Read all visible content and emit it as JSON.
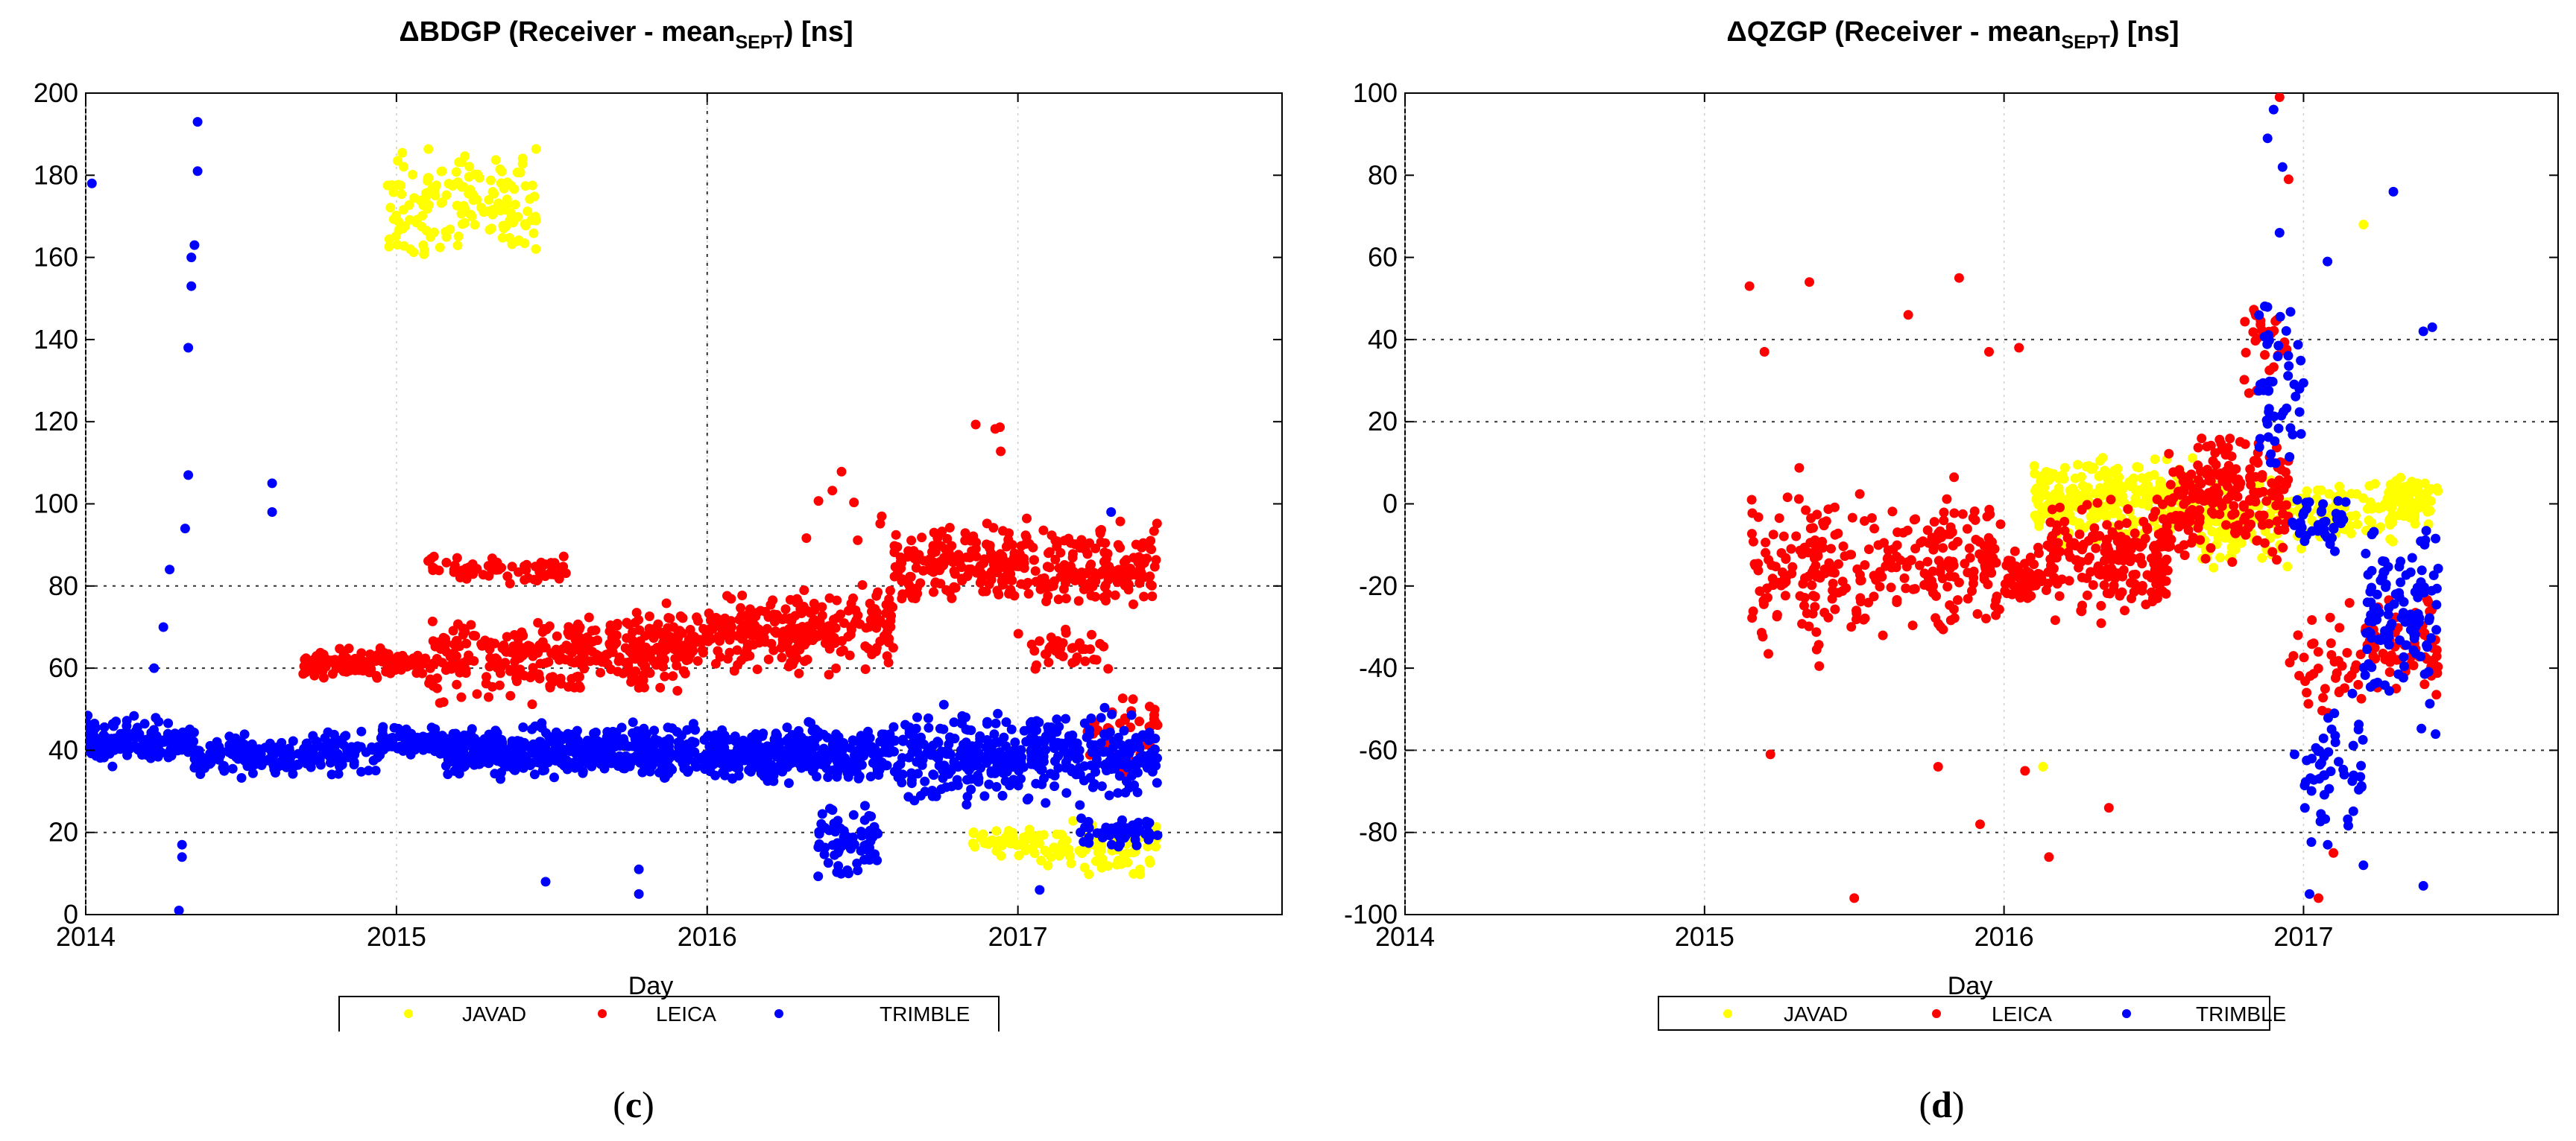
{
  "chart_data": [
    {
      "type": "scatter",
      "panel_label": "c",
      "title_prefix": "ΔBDGP (Receiver - mean",
      "title_subscript": "SEPT",
      "title_suffix": ") [ns]",
      "xlabel": "Day",
      "ylabel": "",
      "xlim": [
        2014,
        2017.85
      ],
      "ylim": [
        0,
        200
      ],
      "xticks": [
        2014,
        2015,
        2016,
        2017
      ],
      "xtick_labels": [
        "2014",
        "2015",
        "2016",
        "2017"
      ],
      "yticks": [
        0,
        20,
        40,
        60,
        80,
        100,
        120,
        140,
        160,
        180,
        200
      ],
      "ytick_labels": [
        "0",
        "20",
        "40",
        "60",
        "80",
        "100",
        "120",
        "140",
        "160",
        "180",
        "200"
      ],
      "grid_y": [
        20,
        40,
        60,
        80
      ],
      "grid_x": [
        2016
      ],
      "legend": [
        "JAVAD",
        "LEICA",
        "TRIMBLE"
      ],
      "legend_position": "bottom-center",
      "colors": {
        "JAVAD": "#ffff00",
        "LEICA": "#ff0000",
        "TRIMBLE": "#0000ff"
      },
      "clusters": {
        "JAVAD": [
          {
            "x": [
              2014.97,
              2015.45
            ],
            "y": [
              155,
              190
            ],
            "n": 160
          },
          {
            "x": [
              2016.85,
              2017.05
            ],
            "y": [
              12,
              24
            ],
            "n": 50
          },
          {
            "x": [
              2017.05,
              2017.45
            ],
            "y": [
              8,
              25
            ],
            "n": 90
          }
        ],
        "LEICA": [
          {
            "x": [
              2014.7,
              2015.1
            ],
            "y": [
              56,
              66
            ],
            "n": 120
          },
          {
            "x": [
              2015.1,
              2015.6
            ],
            "y": [
              50,
              75
            ],
            "n": 180
          },
          {
            "x": [
              2015.1,
              2015.55
            ],
            "y": [
              80,
              88
            ],
            "n": 70
          },
          {
            "x": [
              2015.55,
              2016.0
            ],
            "y": [
              52,
              78
            ],
            "n": 200
          },
          {
            "x": [
              2016.0,
              2016.6
            ],
            "y": [
              56,
              82
            ],
            "n": 260
          },
          {
            "x": [
              2016.6,
              2017.45
            ],
            "y": [
              72,
              98
            ],
            "n": 360
          },
          {
            "x": [
              2017.0,
              2017.3
            ],
            "y": [
              58,
              72
            ],
            "n": 40
          },
          {
            "x": [
              2017.2,
              2017.45
            ],
            "y": [
              30,
              58
            ],
            "n": 40
          },
          {
            "x": [
              2016.3,
              2016.6
            ],
            "y": [
              88,
              112
            ],
            "n": 8
          },
          {
            "x": [
              2016.85,
              2016.95
            ],
            "y": [
              110,
              123
            ],
            "n": 4
          }
        ],
        "TRIMBLE": [
          {
            "x": [
              2014.0,
              2014.35
            ],
            "y": [
              35,
              50
            ],
            "n": 150
          },
          {
            "x": [
              2014.35,
              2014.95
            ],
            "y": [
              32,
              46
            ],
            "n": 200
          },
          {
            "x": [
              2014.95,
              2015.15
            ],
            "y": [
              38,
              47
            ],
            "n": 80
          },
          {
            "x": [
              2015.15,
              2016.0
            ],
            "y": [
              31,
              48
            ],
            "n": 500
          },
          {
            "x": [
              2016.0,
              2016.6
            ],
            "y": [
              30,
              48
            ],
            "n": 350
          },
          {
            "x": [
              2016.35,
              2016.55
            ],
            "y": [
              6,
              28
            ],
            "n": 70
          },
          {
            "x": [
              2016.6,
              2017.45
            ],
            "y": [
              25,
              52
            ],
            "n": 400
          },
          {
            "x": [
              2017.2,
              2017.45
            ],
            "y": [
              15,
              25
            ],
            "n": 60
          }
        ]
      },
      "points": {
        "TRIMBLE": [
          [
            2014.02,
            178
          ],
          [
            2014.3,
            1
          ],
          [
            2014.31,
            14
          ],
          [
            2014.31,
            17
          ],
          [
            2014.32,
            94
          ],
          [
            2014.33,
            107
          ],
          [
            2014.33,
            138
          ],
          [
            2014.34,
            153
          ],
          [
            2014.34,
            160
          ],
          [
            2014.35,
            163
          ],
          [
            2014.36,
            181
          ],
          [
            2014.36,
            193
          ],
          [
            2014.6,
            98
          ],
          [
            2014.6,
            105
          ],
          [
            2014.25,
            70
          ],
          [
            2014.27,
            84
          ],
          [
            2014.22,
            60
          ],
          [
            2015.78,
            5
          ],
          [
            2015.78,
            11
          ],
          [
            2015.48,
            8
          ],
          [
            2017.07,
            6
          ],
          [
            2017.3,
            98
          ]
        ]
      }
    },
    {
      "type": "scatter",
      "panel_label": "d",
      "title_prefix": "ΔQZGP (Receiver - mean",
      "title_subscript": "SEPT",
      "title_suffix": ") [ns]",
      "xlabel": "Day",
      "ylabel": "",
      "xlim": [
        2014,
        2017.85
      ],
      "ylim": [
        -100,
        100
      ],
      "xticks": [
        2014,
        2015,
        2016,
        2017
      ],
      "xtick_labels": [
        "2014",
        "2015",
        "2016",
        "2017"
      ],
      "yticks": [
        -100,
        -80,
        -60,
        -40,
        -20,
        0,
        20,
        40,
        60,
        80,
        100
      ],
      "ytick_labels": [
        "-100",
        "-80",
        "-60",
        "-40",
        "-20",
        "0",
        "20",
        "40",
        "60",
        "80",
        "100"
      ],
      "grid_y": [
        -80,
        -60,
        20,
        40
      ],
      "grid_x": [],
      "legend": [
        "JAVAD",
        "LEICA",
        "TRIMBLE"
      ],
      "legend_position": "bottom-center",
      "colors": {
        "JAVAD": "#ffff00",
        "LEICA": "#ff0000",
        "TRIMBLE": "#0000ff"
      },
      "clusters": {
        "JAVAD": [
          {
            "x": [
              2016.1,
              2016.65
            ],
            "y": [
              -12,
              14
            ],
            "n": 260
          },
          {
            "x": [
              2016.65,
              2016.95
            ],
            "y": [
              -20,
              10
            ],
            "n": 100
          },
          {
            "x": [
              2016.95,
              2017.3
            ],
            "y": [
              -12,
              8
            ],
            "n": 90
          },
          {
            "x": [
              2017.28,
              2017.45
            ],
            "y": [
              -8,
              10
            ],
            "n": 70
          }
        ],
        "LEICA": [
          {
            "x": [
              2015.15,
              2015.55
            ],
            "y": [
              -45,
              15
            ],
            "n": 140
          },
          {
            "x": [
              2015.55,
              2016.0
            ],
            "y": [
              -40,
              10
            ],
            "n": 150
          },
          {
            "x": [
              2016.0,
              2016.15
            ],
            "y": [
              -28,
              -8
            ],
            "n": 60
          },
          {
            "x": [
              2016.15,
              2016.55
            ],
            "y": [
              -32,
              5
            ],
            "n": 200
          },
          {
            "x": [
              2016.55,
              2016.95
            ],
            "y": [
              -20,
              22
            ],
            "n": 200
          },
          {
            "x": [
              2016.8,
              2016.95
            ],
            "y": [
              20,
              55
            ],
            "n": 30
          },
          {
            "x": [
              2016.95,
              2017.2
            ],
            "y": [
              -60,
              -20
            ],
            "n": 40
          },
          {
            "x": [
              2017.2,
              2017.45
            ],
            "y": [
              -50,
              -20
            ],
            "n": 70
          }
        ],
        "TRIMBLE": [
          {
            "x": [
              2016.85,
              2017.0
            ],
            "y": [
              -5,
              60
            ],
            "n": 50
          },
          {
            "x": [
              2016.95,
              2017.15
            ],
            "y": [
              -15,
              5
            ],
            "n": 40
          },
          {
            "x": [
              2017.0,
              2017.2
            ],
            "y": [
              -90,
              -40
            ],
            "n": 50
          },
          {
            "x": [
              2017.2,
              2017.45
            ],
            "y": [
              -60,
              5
            ],
            "n": 120
          }
        ]
      },
      "points": {
        "LEICA": [
          [
            2015.15,
            53
          ],
          [
            2015.2,
            37
          ],
          [
            2015.35,
            54
          ],
          [
            2015.68,
            46
          ],
          [
            2015.85,
            55
          ],
          [
            2015.95,
            37
          ],
          [
            2016.05,
            38
          ],
          [
            2015.5,
            -96
          ],
          [
            2015.92,
            -78
          ],
          [
            2016.35,
            -74
          ],
          [
            2016.15,
            -86
          ],
          [
            2016.07,
            -65
          ],
          [
            2015.22,
            -61
          ],
          [
            2015.78,
            -64
          ],
          [
            2016.92,
            99
          ],
          [
            2016.95,
            79
          ],
          [
            2017.05,
            -96
          ],
          [
            2017.1,
            -85
          ]
        ],
        "TRIMBLE": [
          [
            2016.88,
            89
          ],
          [
            2016.9,
            96
          ],
          [
            2016.93,
            82
          ],
          [
            2016.92,
            66
          ],
          [
            2017.4,
            42
          ],
          [
            2017.43,
            43
          ],
          [
            2017.3,
            76
          ],
          [
            2017.08,
            59
          ],
          [
            2017.02,
            -95
          ],
          [
            2017.4,
            -93
          ],
          [
            2017.2,
            -88
          ],
          [
            2016.97,
            -61
          ]
        ],
        "JAVAD": [
          [
            2017.2,
            68
          ],
          [
            2016.13,
            -64
          ]
        ]
      }
    }
  ]
}
